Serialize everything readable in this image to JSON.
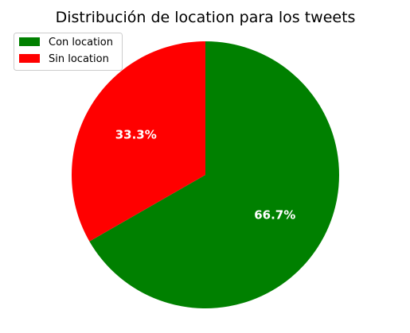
{
  "chart_data": {
    "type": "pie",
    "title": "Distribución de location para los tweets",
    "start_angle_deg": 90,
    "direction": "clockwise",
    "legend_position": "top-left",
    "slices": [
      {
        "label": "Con location",
        "value": 66.7,
        "display": "66.7%",
        "color": "#008000"
      },
      {
        "label": "Sin location",
        "value": 33.3,
        "display": "33.3%",
        "color": "#ff0000"
      }
    ],
    "pct_label_color": "#ffffff"
  }
}
